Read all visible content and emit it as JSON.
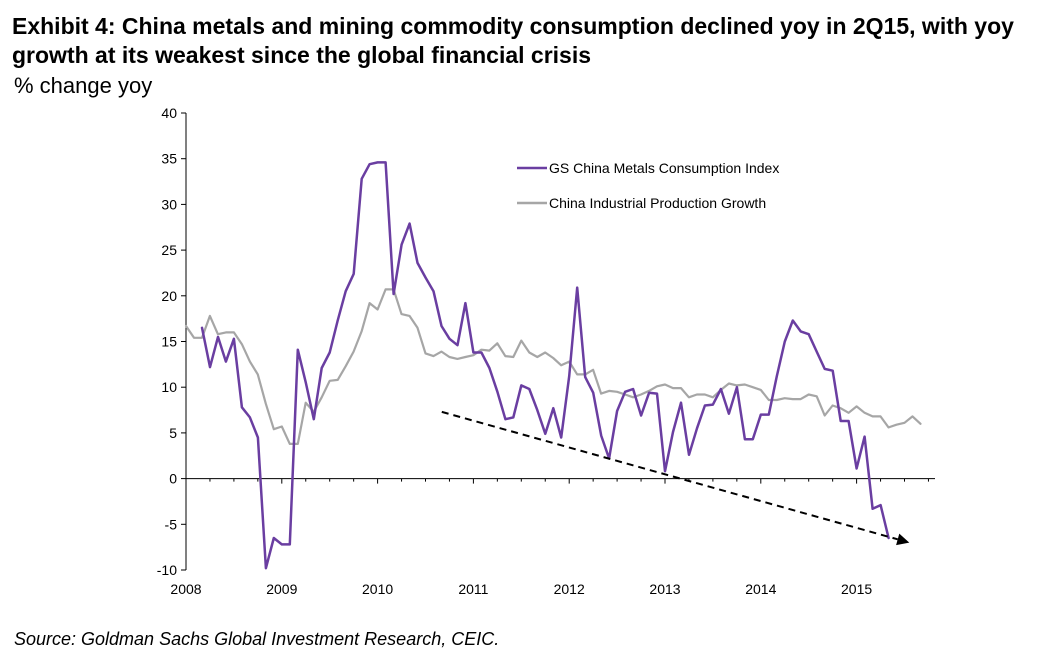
{
  "chart_data": {
    "type": "line",
    "title": "Exhibit 4: China metals and mining commodity consumption declined yoy in 2Q15, with yoy growth at its weakest since the global financial crisis",
    "ylabel": "% change yoy",
    "xlabel": "",
    "ylim": [
      -10,
      40
    ],
    "xlim": [
      2008,
      2015.75
    ],
    "y_ticks": [
      "40",
      "35",
      "30",
      "25",
      "20",
      "15",
      "10",
      "5",
      "0",
      "-5",
      "-10"
    ],
    "x_ticks": [
      "2008",
      "2009",
      "2010",
      "2011",
      "2012",
      "2013",
      "2014",
      "2015"
    ],
    "legend": [
      "GS China Metals Consumption Index",
      "China Industrial Production Growth"
    ],
    "series": [
      {
        "name": "GS China Metals Consumption Index",
        "color": "#6a3ea1",
        "start": 2008.167,
        "step": 0.0833333,
        "values": [
          16.5,
          12.2,
          15.5,
          12.8,
          15.3,
          7.8,
          6.7,
          4.5,
          -9.8,
          -6.5,
          -7.2,
          -7.2,
          14.1,
          10.5,
          6.5,
          12.1,
          13.8,
          17.3,
          20.5,
          22.4,
          32.8,
          34.4,
          34.6,
          34.6,
          20.2,
          25.6,
          27.9,
          23.6,
          22.0,
          20.5,
          16.7,
          15.3,
          14.6,
          19.2,
          13.8,
          13.8,
          12.1,
          9.5,
          6.5,
          6.7,
          10.2,
          9.8,
          7.5,
          4.9,
          7.7,
          4.5,
          11.2,
          20.9,
          11.1,
          9.4,
          4.7,
          2.2,
          7.4,
          9.5,
          9.8,
          6.9,
          9.4,
          9.3,
          0.8,
          5.1,
          8.3,
          2.6,
          5.5,
          8.0,
          8.1,
          9.8,
          7.1,
          10.0,
          4.3,
          4.3,
          7.0,
          7.0,
          11.2,
          15.0,
          17.3,
          16.1,
          15.8,
          13.9,
          12.0,
          11.8,
          6.3,
          6.3,
          1.1,
          4.6,
          -3.3,
          -2.9,
          -6.5
        ]
      },
      {
        "name": "China Industrial Production Growth",
        "color": "#a6a6a6",
        "start": 2008.0,
        "step": 0.0833333,
        "values": [
          16.7,
          15.4,
          15.4,
          17.8,
          15.8,
          16.0,
          16.0,
          14.7,
          12.8,
          11.4,
          8.2,
          5.4,
          5.7,
          3.8,
          3.8,
          8.3,
          7.3,
          8.9,
          10.7,
          10.8,
          12.3,
          13.9,
          16.1,
          19.2,
          18.5,
          20.7,
          20.7,
          18.0,
          17.8,
          16.5,
          13.7,
          13.4,
          13.9,
          13.3,
          13.1,
          13.3,
          13.5,
          14.1,
          14.0,
          14.8,
          13.4,
          13.3,
          15.1,
          13.8,
          13.3,
          13.8,
          13.2,
          12.4,
          12.8,
          11.4,
          11.4,
          11.9,
          9.3,
          9.6,
          9.5,
          9.2,
          8.9,
          9.2,
          9.6,
          10.1,
          10.3,
          9.9,
          9.9,
          8.9,
          9.2,
          9.2,
          8.9,
          9.7,
          10.4,
          10.2,
          10.3,
          10.0,
          9.7,
          8.6,
          8.6,
          8.8,
          8.7,
          8.7,
          9.2,
          9.0,
          6.9,
          8.0,
          7.7,
          7.2,
          7.9,
          7.2,
          6.8,
          6.8,
          5.6,
          5.9,
          6.1,
          6.8,
          6.0
        ]
      }
    ],
    "annotation": "dashed downward-trend arrow from mid-2010 (about 7.2%) to mid-2015 (about -7%)",
    "trend_arrow": {
      "x_start": 2010.67,
      "y_start": 7.3,
      "x_end": 2015.55,
      "y_end": -7.0
    }
  },
  "source": "Source: Goldman Sachs Global Investment Research, CEIC."
}
